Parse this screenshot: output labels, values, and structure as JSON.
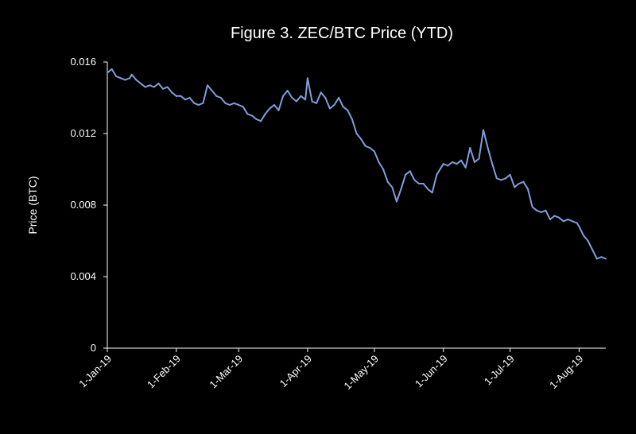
{
  "chart_data": {
    "type": "line",
    "title": "Figure 3. ZEC/BTC Price (YTD)",
    "xlabel": "",
    "ylabel": "Price (BTC)",
    "ylim": [
      0,
      0.016
    ],
    "yticks": [
      "0",
      "0.004",
      "0.008",
      "0.012",
      "0.016"
    ],
    "x_tick_labels": [
      "1-Jan-19",
      "1-Feb-19",
      "1-Mar-19",
      "1-Apr-19",
      "1-May-19",
      "1-Jun-19",
      "1-Jul-19",
      "1-Aug-19"
    ],
    "xlim": [
      "2019-01-01",
      "2019-08-13"
    ],
    "grid": false,
    "legend": "none",
    "line_color": "#7f9fdc",
    "series": [
      {
        "x": [
          "2019-01-01",
          "2019-01-03",
          "2019-01-05",
          "2019-01-07",
          "2019-01-09",
          "2019-01-11",
          "2019-01-12",
          "2019-01-14",
          "2019-01-16",
          "2019-01-18",
          "2019-01-20",
          "2019-01-22",
          "2019-01-24",
          "2019-01-26",
          "2019-01-28",
          "2019-01-30",
          "2019-02-01",
          "2019-02-03",
          "2019-02-05",
          "2019-02-07",
          "2019-02-09",
          "2019-02-11",
          "2019-02-13",
          "2019-02-15",
          "2019-02-17",
          "2019-02-19",
          "2019-02-21",
          "2019-02-23",
          "2019-02-25",
          "2019-02-27",
          "2019-03-01",
          "2019-03-03",
          "2019-03-05",
          "2019-03-07",
          "2019-03-09",
          "2019-03-11",
          "2019-03-13",
          "2019-03-15",
          "2019-03-17",
          "2019-03-19",
          "2019-03-21",
          "2019-03-23",
          "2019-03-25",
          "2019-03-27",
          "2019-03-29",
          "2019-03-31",
          "2019-04-01",
          "2019-04-03",
          "2019-04-05",
          "2019-04-07",
          "2019-04-09",
          "2019-04-11",
          "2019-04-13",
          "2019-04-15",
          "2019-04-17",
          "2019-04-19",
          "2019-04-21",
          "2019-04-23",
          "2019-04-25",
          "2019-04-27",
          "2019-04-29",
          "2019-05-01",
          "2019-05-03",
          "2019-05-05",
          "2019-05-07",
          "2019-05-09",
          "2019-05-11",
          "2019-05-13",
          "2019-05-15",
          "2019-05-17",
          "2019-05-19",
          "2019-05-21",
          "2019-05-23",
          "2019-05-25",
          "2019-05-27",
          "2019-05-29",
          "2019-05-31",
          "2019-06-01",
          "2019-06-03",
          "2019-06-05",
          "2019-06-07",
          "2019-06-09",
          "2019-06-11",
          "2019-06-13",
          "2019-06-15",
          "2019-06-17",
          "2019-06-19",
          "2019-06-21",
          "2019-06-23",
          "2019-06-25",
          "2019-06-27",
          "2019-06-29",
          "2019-07-01",
          "2019-07-03",
          "2019-07-05",
          "2019-07-07",
          "2019-07-09",
          "2019-07-11",
          "2019-07-13",
          "2019-07-15",
          "2019-07-17",
          "2019-07-19",
          "2019-07-21",
          "2019-07-23",
          "2019-07-25",
          "2019-07-27",
          "2019-07-29",
          "2019-07-31",
          "2019-08-01",
          "2019-08-03",
          "2019-08-05",
          "2019-08-07",
          "2019-08-09",
          "2019-08-11",
          "2019-08-13"
        ],
        "y": [
          0.0154,
          0.0156,
          0.0152,
          0.0151,
          0.015,
          0.0151,
          0.0153,
          0.015,
          0.0148,
          0.0146,
          0.0147,
          0.0146,
          0.0148,
          0.0145,
          0.0146,
          0.0143,
          0.0141,
          0.0141,
          0.0139,
          0.014,
          0.0137,
          0.0136,
          0.0137,
          0.0147,
          0.0144,
          0.0141,
          0.014,
          0.0137,
          0.0136,
          0.0137,
          0.0136,
          0.0135,
          0.0131,
          0.013,
          0.0128,
          0.0127,
          0.0131,
          0.0134,
          0.0136,
          0.0133,
          0.0141,
          0.0144,
          0.014,
          0.0138,
          0.0141,
          0.0139,
          0.0151,
          0.0138,
          0.0137,
          0.0143,
          0.014,
          0.0134,
          0.0136,
          0.014,
          0.0135,
          0.0133,
          0.0128,
          0.012,
          0.0117,
          0.0113,
          0.0112,
          0.011,
          0.0104,
          0.01,
          0.0093,
          0.009,
          0.0082,
          0.0089,
          0.0097,
          0.0099,
          0.0094,
          0.0092,
          0.0092,
          0.0089,
          0.0087,
          0.0097,
          0.0101,
          0.0103,
          0.0102,
          0.0104,
          0.0103,
          0.0105,
          0.0101,
          0.0112,
          0.0104,
          0.0106,
          0.0122,
          0.0112,
          0.0103,
          0.0095,
          0.0094,
          0.0095,
          0.0097,
          0.009,
          0.0092,
          0.0093,
          0.0089,
          0.0079,
          0.0077,
          0.0076,
          0.0077,
          0.0072,
          0.0074,
          0.0073,
          0.0071,
          0.0072,
          0.0071,
          0.007,
          0.0068,
          0.0063,
          0.006,
          0.0055,
          0.005,
          0.0051,
          0.005
        ]
      }
    ]
  }
}
